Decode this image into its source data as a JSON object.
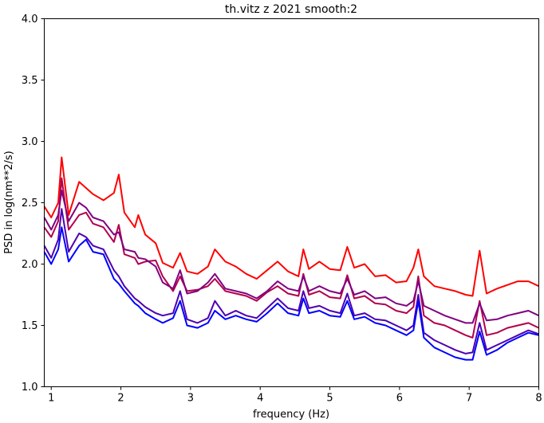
{
  "chart_data": {
    "type": "line",
    "title": "th.vitz z 2021 smooth:2",
    "xlabel": "frequency (Hz)",
    "ylabel": "PSD in log(nm**2/s)",
    "xlim": [
      0.9,
      8.0
    ],
    "ylim": [
      1.0,
      4.0
    ],
    "x_ticks": [
      1,
      2,
      3,
      4,
      5,
      6,
      7,
      8
    ],
    "y_ticks": [
      1.0,
      1.5,
      2.0,
      2.5,
      3.0,
      3.5,
      4.0
    ],
    "grid": false,
    "legend": "none",
    "x": [
      0.9,
      1.0,
      1.1,
      1.15,
      1.25,
      1.4,
      1.5,
      1.6,
      1.75,
      1.9,
      1.97,
      2.05,
      2.2,
      2.25,
      2.35,
      2.5,
      2.6,
      2.75,
      2.85,
      2.95,
      3.1,
      3.25,
      3.35,
      3.5,
      3.65,
      3.8,
      3.95,
      4.1,
      4.25,
      4.4,
      4.55,
      4.62,
      4.7,
      4.85,
      5.0,
      5.15,
      5.25,
      5.35,
      5.5,
      5.65,
      5.8,
      5.95,
      6.1,
      6.2,
      6.27,
      6.35,
      6.5,
      6.65,
      6.8,
      6.95,
      7.05,
      7.15,
      7.25,
      7.4,
      7.55,
      7.7,
      7.85,
      8.0
    ],
    "series": [
      {
        "color": "#ff0000",
        "values": [
          2.47,
          2.38,
          2.5,
          2.87,
          2.4,
          2.67,
          2.62,
          2.57,
          2.52,
          2.58,
          2.73,
          2.42,
          2.3,
          2.4,
          2.24,
          2.17,
          2.01,
          1.97,
          2.09,
          1.94,
          1.92,
          1.98,
          2.12,
          2.02,
          1.98,
          1.92,
          1.88,
          1.95,
          2.02,
          1.94,
          1.9,
          2.12,
          1.96,
          2.02,
          1.96,
          1.95,
          2.14,
          1.97,
          2.0,
          1.9,
          1.91,
          1.85,
          1.86,
          1.97,
          2.12,
          1.9,
          1.82,
          1.8,
          1.78,
          1.75,
          1.74,
          2.11,
          1.76,
          1.8,
          1.83,
          1.86,
          1.86,
          1.82
        ]
      },
      {
        "color": "#b2004c",
        "values": [
          2.3,
          2.22,
          2.35,
          2.7,
          2.28,
          2.4,
          2.42,
          2.33,
          2.3,
          2.18,
          2.32,
          2.08,
          2.05,
          2.0,
          2.02,
          2.03,
          1.9,
          1.78,
          1.9,
          1.78,
          1.79,
          1.82,
          1.88,
          1.78,
          1.76,
          1.74,
          1.7,
          1.77,
          1.82,
          1.76,
          1.74,
          1.92,
          1.75,
          1.78,
          1.73,
          1.72,
          1.91,
          1.72,
          1.74,
          1.68,
          1.67,
          1.62,
          1.6,
          1.65,
          1.9,
          1.58,
          1.52,
          1.5,
          1.46,
          1.42,
          1.4,
          1.7,
          1.42,
          1.44,
          1.48,
          1.5,
          1.52,
          1.48
        ]
      },
      {
        "color": "#800080",
        "values": [
          2.38,
          2.28,
          2.4,
          2.6,
          2.35,
          2.5,
          2.46,
          2.38,
          2.35,
          2.24,
          2.26,
          2.12,
          2.1,
          2.05,
          2.04,
          1.98,
          1.85,
          1.8,
          1.95,
          1.76,
          1.78,
          1.85,
          1.92,
          1.8,
          1.78,
          1.76,
          1.72,
          1.78,
          1.86,
          1.8,
          1.78,
          1.9,
          1.78,
          1.82,
          1.78,
          1.76,
          1.88,
          1.75,
          1.78,
          1.72,
          1.73,
          1.68,
          1.66,
          1.7,
          1.86,
          1.66,
          1.62,
          1.58,
          1.55,
          1.52,
          1.52,
          1.68,
          1.54,
          1.55,
          1.58,
          1.6,
          1.62,
          1.58
        ]
      },
      {
        "color": "#4c00b2",
        "values": [
          2.15,
          2.05,
          2.2,
          2.45,
          2.1,
          2.25,
          2.22,
          2.15,
          2.12,
          1.95,
          1.9,
          1.82,
          1.72,
          1.7,
          1.65,
          1.6,
          1.58,
          1.6,
          1.78,
          1.55,
          1.52,
          1.56,
          1.7,
          1.58,
          1.62,
          1.58,
          1.56,
          1.64,
          1.72,
          1.64,
          1.62,
          1.78,
          1.64,
          1.66,
          1.62,
          1.6,
          1.76,
          1.58,
          1.6,
          1.55,
          1.54,
          1.5,
          1.46,
          1.5,
          1.75,
          1.44,
          1.38,
          1.34,
          1.3,
          1.27,
          1.28,
          1.52,
          1.3,
          1.34,
          1.38,
          1.42,
          1.46,
          1.43
        ]
      },
      {
        "color": "#0000ff",
        "values": [
          2.1,
          2.0,
          2.12,
          2.3,
          2.02,
          2.15,
          2.2,
          2.1,
          2.08,
          1.88,
          1.84,
          1.78,
          1.68,
          1.66,
          1.6,
          1.55,
          1.52,
          1.56,
          1.7,
          1.5,
          1.48,
          1.52,
          1.62,
          1.55,
          1.58,
          1.55,
          1.53,
          1.6,
          1.68,
          1.6,
          1.58,
          1.72,
          1.6,
          1.62,
          1.58,
          1.57,
          1.7,
          1.55,
          1.57,
          1.52,
          1.5,
          1.46,
          1.42,
          1.46,
          1.7,
          1.4,
          1.32,
          1.28,
          1.24,
          1.22,
          1.22,
          1.45,
          1.26,
          1.3,
          1.36,
          1.4,
          1.44,
          1.42
        ]
      }
    ]
  }
}
